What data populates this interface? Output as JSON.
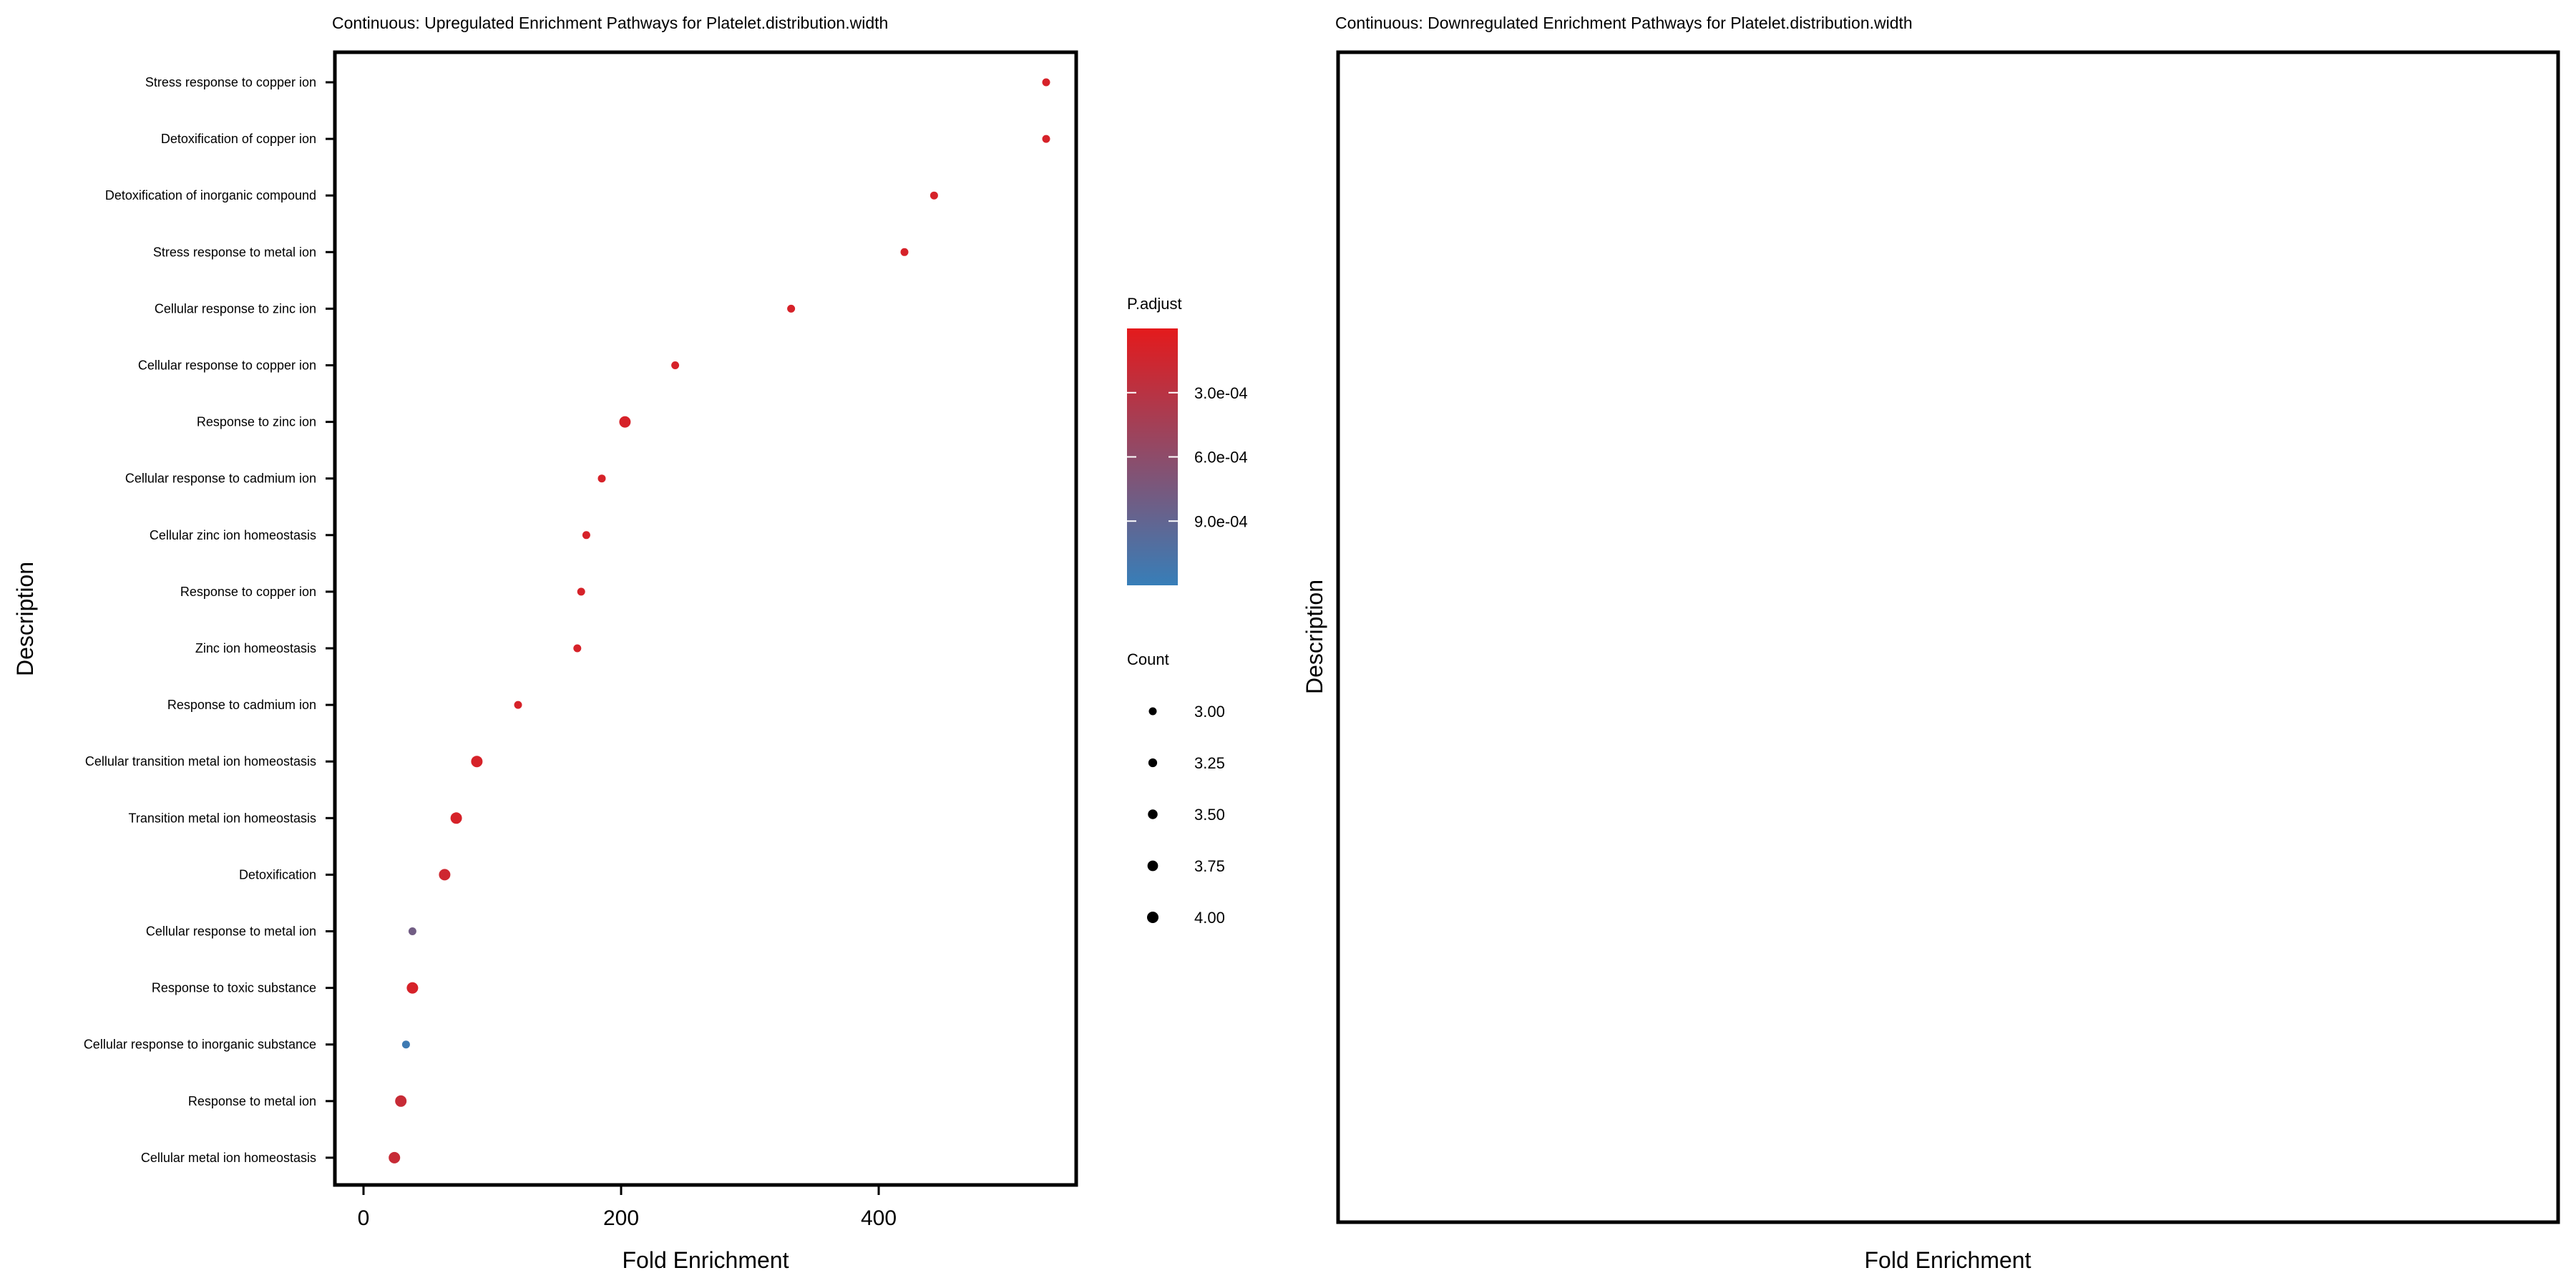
{
  "chart_data": [
    {
      "type": "scatter",
      "title": "Continuous: Upregulated Enrichment Pathways for Platelet.distribution.width",
      "xlabel": "Fold Enrichment",
      "ylabel": "Description",
      "xlim": [
        -25,
        555
      ],
      "xticks": [
        0,
        200,
        400
      ],
      "grid": false,
      "legend_position": "right",
      "categories": [
        "Stress response to copper ion",
        "Detoxification of copper ion",
        "Detoxification of inorganic compound",
        "Stress response to metal ion",
        "Cellular response to zinc ion",
        "Cellular response to copper ion",
        "Response to zinc ion",
        "Cellular response to cadmium ion",
        "Cellular zinc ion homeostasis",
        "Response to copper ion",
        "Zinc ion homeostasis",
        "Response to cadmium ion",
        "Cellular transition metal ion homeostasis",
        "Transition metal ion homeostasis",
        "Detoxification",
        "Cellular response to metal ion",
        "Response to toxic substance",
        "Cellular response to inorganic substance",
        "Response to metal ion",
        "Cellular metal ion homeostasis"
      ],
      "points": [
        {
          "y": "Stress response to copper ion",
          "x": 530,
          "count": 3,
          "p_adjust": 0.0001
        },
        {
          "y": "Detoxification of copper ion",
          "x": 530,
          "count": 3,
          "p_adjust": 0.0001
        },
        {
          "y": "Detoxification of inorganic compound",
          "x": 443,
          "count": 3,
          "p_adjust": 0.0001
        },
        {
          "y": "Stress response to metal ion",
          "x": 420,
          "count": 3,
          "p_adjust": 0.0001
        },
        {
          "y": "Cellular response to zinc ion",
          "x": 332,
          "count": 3,
          "p_adjust": 0.0001
        },
        {
          "y": "Cellular response to copper ion",
          "x": 242,
          "count": 3,
          "p_adjust": 0.0001
        },
        {
          "y": "Response to zinc ion",
          "x": 203,
          "count": 4,
          "p_adjust": 0.0001
        },
        {
          "y": "Cellular response to cadmium ion",
          "x": 185,
          "count": 3,
          "p_adjust": 0.0001
        },
        {
          "y": "Cellular zinc ion homeostasis",
          "x": 173,
          "count": 3,
          "p_adjust": 0.0001
        },
        {
          "y": "Response to copper ion",
          "x": 169,
          "count": 3,
          "p_adjust": 0.0001
        },
        {
          "y": "Zinc ion homeostasis",
          "x": 166,
          "count": 3,
          "p_adjust": 0.0001
        },
        {
          "y": "Response to cadmium ion",
          "x": 120,
          "count": 3,
          "p_adjust": 0.0001
        },
        {
          "y": "Cellular transition metal ion homeostasis",
          "x": 88,
          "count": 4,
          "p_adjust": 0.0001
        },
        {
          "y": "Transition metal ion homeostasis",
          "x": 72,
          "count": 4,
          "p_adjust": 0.0001
        },
        {
          "y": "Detoxification",
          "x": 63,
          "count": 4,
          "p_adjust": 0.00015
        },
        {
          "y": "Cellular response to metal ion",
          "x": 38,
          "count": 3,
          "p_adjust": 0.0008
        },
        {
          "y": "Response to toxic substance",
          "x": 38,
          "count": 4,
          "p_adjust": 0.0001
        },
        {
          "y": "Cellular response to inorganic substance",
          "x": 33,
          "count": 3,
          "p_adjust": 0.00115
        },
        {
          "y": "Response to metal ion",
          "x": 29,
          "count": 4,
          "p_adjust": 0.0002
        },
        {
          "y": "Cellular metal ion homeostasis",
          "x": 24,
          "count": 4,
          "p_adjust": 0.0002
        }
      ],
      "color_legend": {
        "title": "P.adjust",
        "range": [
          0.0,
          0.0012
        ],
        "ticks": [
          {
            "value": 0.0003,
            "label": "3.0e-04"
          },
          {
            "value": 0.0006,
            "label": "6.0e-04"
          },
          {
            "value": 0.0009,
            "label": "9.0e-04"
          }
        ],
        "low_color": "#e41a1c",
        "high_color": "#377eb8"
      },
      "size_legend": {
        "title": "Count",
        "entries": [
          {
            "value": 3.0,
            "label": "3.00"
          },
          {
            "value": 3.25,
            "label": "3.25"
          },
          {
            "value": 3.5,
            "label": "3.50"
          },
          {
            "value": 3.75,
            "label": "3.75"
          },
          {
            "value": 4.0,
            "label": "4.00"
          }
        ]
      }
    },
    {
      "type": "scatter",
      "title": "Continuous: Downregulated Enrichment Pathways for Platelet.distribution.width",
      "xlabel": "Fold Enrichment",
      "ylabel": "Description",
      "grid": false,
      "categories": [],
      "points": []
    }
  ]
}
